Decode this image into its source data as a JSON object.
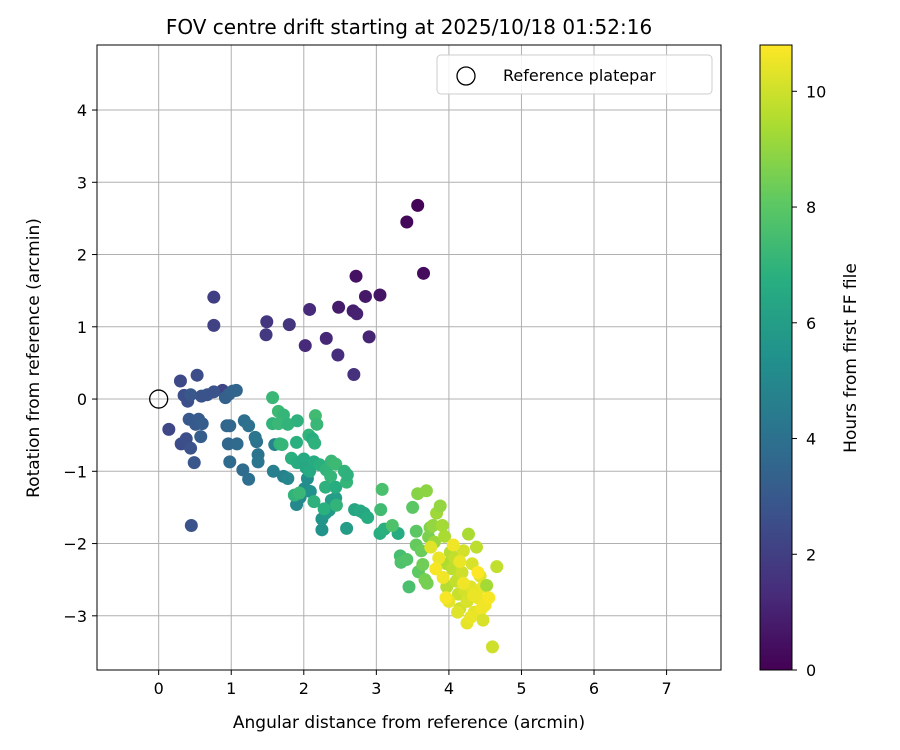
{
  "chart_data": {
    "type": "scatter",
    "title": "FOV centre drift starting at 2025/10/18 01:52:16",
    "xlabel": "Angular distance from reference (arcmin)",
    "ylabel": "Rotation from reference (arcmin)",
    "xlim": [
      -0.85,
      7.75
    ],
    "ylim": [
      -3.75,
      4.9
    ],
    "xticks": [
      0,
      1,
      2,
      3,
      4,
      5,
      6,
      7
    ],
    "yticks": [
      -3,
      -2,
      -1,
      0,
      1,
      2,
      3,
      4
    ],
    "grid": true,
    "legend": {
      "position": "top-right",
      "entries": [
        "Reference platepar"
      ]
    },
    "reference_point": {
      "x": 0,
      "y": 0,
      "label": "Reference platepar"
    },
    "colorbar": {
      "label": "Hours from first FF file",
      "range": [
        0,
        10.8
      ],
      "ticks": [
        0,
        2,
        4,
        6,
        8,
        10
      ],
      "colormap": "viridis"
    },
    "points": [
      {
        "x": 3.57,
        "y": 2.68,
        "c": 0.1
      },
      {
        "x": 3.42,
        "y": 2.45,
        "c": 0.2
      },
      {
        "x": 3.65,
        "y": 1.74,
        "c": 0.3
      },
      {
        "x": 2.72,
        "y": 1.7,
        "c": 0.5
      },
      {
        "x": 3.05,
        "y": 1.44,
        "c": 0.6
      },
      {
        "x": 2.85,
        "y": 1.42,
        "c": 0.7
      },
      {
        "x": 2.48,
        "y": 1.27,
        "c": 0.8
      },
      {
        "x": 2.68,
        "y": 1.22,
        "c": 0.9
      },
      {
        "x": 2.73,
        "y": 1.18,
        "c": 1.0
      },
      {
        "x": 2.9,
        "y": 0.86,
        "c": 1.1
      },
      {
        "x": 2.31,
        "y": 0.84,
        "c": 1.2
      },
      {
        "x": 2.02,
        "y": 0.74,
        "c": 1.3
      },
      {
        "x": 2.47,
        "y": 0.61,
        "c": 1.4
      },
      {
        "x": 2.69,
        "y": 0.34,
        "c": 1.5
      },
      {
        "x": 2.08,
        "y": 1.24,
        "c": 1.3
      },
      {
        "x": 1.8,
        "y": 1.03,
        "c": 1.6
      },
      {
        "x": 1.49,
        "y": 1.07,
        "c": 1.7
      },
      {
        "x": 1.48,
        "y": 0.89,
        "c": 1.8
      },
      {
        "x": 0.76,
        "y": 1.41,
        "c": 2.0
      },
      {
        "x": 0.76,
        "y": 1.02,
        "c": 2.1
      },
      {
        "x": 0.88,
        "y": 0.12,
        "c": 2.2
      },
      {
        "x": 0.3,
        "y": 0.25,
        "c": 2.4
      },
      {
        "x": 0.53,
        "y": 0.33,
        "c": 2.5
      },
      {
        "x": 0.35,
        "y": 0.05,
        "c": 2.6
      },
      {
        "x": 0.4,
        "y": -0.03,
        "c": 2.6
      },
      {
        "x": 0.59,
        "y": 0.04,
        "c": 2.7
      },
      {
        "x": 0.76,
        "y": 0.1,
        "c": 2.8
      },
      {
        "x": 0.67,
        "y": 0.06,
        "c": 2.8
      },
      {
        "x": 0.44,
        "y": 0.06,
        "c": 2.9
      },
      {
        "x": 0.14,
        "y": -0.42,
        "c": 2.3
      },
      {
        "x": 0.31,
        "y": -0.62,
        "c": 2.5
      },
      {
        "x": 0.38,
        "y": -0.55,
        "c": 2.6
      },
      {
        "x": 0.44,
        "y": -0.68,
        "c": 2.7
      },
      {
        "x": 0.45,
        "y": -1.75,
        "c": 2.8
      },
      {
        "x": 0.49,
        "y": -0.88,
        "c": 2.9
      },
      {
        "x": 0.42,
        "y": -0.28,
        "c": 3.0
      },
      {
        "x": 0.51,
        "y": -0.35,
        "c": 3.0
      },
      {
        "x": 0.55,
        "y": -0.28,
        "c": 3.1
      },
      {
        "x": 0.58,
        "y": -0.52,
        "c": 3.2
      },
      {
        "x": 0.6,
        "y": -0.34,
        "c": 3.2
      },
      {
        "x": 0.92,
        "y": 0.02,
        "c": 3.3
      },
      {
        "x": 0.97,
        "y": 0.07,
        "c": 3.3
      },
      {
        "x": 1.02,
        "y": 0.11,
        "c": 3.4
      },
      {
        "x": 1.07,
        "y": 0.12,
        "c": 3.5
      },
      {
        "x": 0.94,
        "y": -0.37,
        "c": 3.5
      },
      {
        "x": 0.98,
        "y": -0.37,
        "c": 3.6
      },
      {
        "x": 0.96,
        "y": -0.62,
        "c": 3.6
      },
      {
        "x": 0.98,
        "y": -0.87,
        "c": 3.7
      },
      {
        "x": 1.08,
        "y": -0.62,
        "c": 3.7
      },
      {
        "x": 1.16,
        "y": -0.98,
        "c": 3.8
      },
      {
        "x": 1.24,
        "y": -1.11,
        "c": 3.9
      },
      {
        "x": 1.18,
        "y": -0.3,
        "c": 3.9
      },
      {
        "x": 1.24,
        "y": -0.37,
        "c": 4.0
      },
      {
        "x": 1.35,
        "y": -0.59,
        "c": 4.0
      },
      {
        "x": 1.37,
        "y": -0.77,
        "c": 4.1
      },
      {
        "x": 1.37,
        "y": -0.87,
        "c": 4.2
      },
      {
        "x": 1.33,
        "y": -0.53,
        "c": 4.2
      },
      {
        "x": 1.58,
        "y": -1.0,
        "c": 4.6
      },
      {
        "x": 1.6,
        "y": -0.63,
        "c": 4.8
      },
      {
        "x": 1.72,
        "y": -1.07,
        "c": 4.7
      },
      {
        "x": 1.78,
        "y": -1.1,
        "c": 4.9
      },
      {
        "x": 1.9,
        "y": -1.46,
        "c": 5.0
      },
      {
        "x": 1.95,
        "y": -1.36,
        "c": 5.1
      },
      {
        "x": 2.01,
        "y": -1.24,
        "c": 5.2
      },
      {
        "x": 2.05,
        "y": -1.1,
        "c": 5.3
      },
      {
        "x": 2.09,
        "y": -1.28,
        "c": 5.4
      },
      {
        "x": 2.25,
        "y": -1.81,
        "c": 5.5
      },
      {
        "x": 2.25,
        "y": -1.66,
        "c": 5.6
      },
      {
        "x": 2.3,
        "y": -1.58,
        "c": 5.7
      },
      {
        "x": 2.35,
        "y": -1.54,
        "c": 5.8
      },
      {
        "x": 2.38,
        "y": -1.4,
        "c": 5.9
      },
      {
        "x": 2.44,
        "y": -1.37,
        "c": 6.0
      },
      {
        "x": 2.59,
        "y": -1.79,
        "c": 5.9
      },
      {
        "x": 2.7,
        "y": -1.53,
        "c": 6.3
      },
      {
        "x": 2.78,
        "y": -1.55,
        "c": 6.5
      },
      {
        "x": 2.83,
        "y": -1.58,
        "c": 6.4
      },
      {
        "x": 2.88,
        "y": -1.64,
        "c": 6.6
      },
      {
        "x": 3.05,
        "y": -1.86,
        "c": 6.7
      },
      {
        "x": 3.11,
        "y": -1.8,
        "c": 6.8
      },
      {
        "x": 3.3,
        "y": -1.86,
        "c": 6.6
      },
      {
        "x": 1.57,
        "y": 0.02,
        "c": 7.2
      },
      {
        "x": 1.65,
        "y": -0.17,
        "c": 7.3
      },
      {
        "x": 1.72,
        "y": -0.22,
        "c": 7.1
      },
      {
        "x": 1.57,
        "y": -0.34,
        "c": 7.0
      },
      {
        "x": 1.65,
        "y": -0.34,
        "c": 7.2
      },
      {
        "x": 1.78,
        "y": -0.35,
        "c": 7.0
      },
      {
        "x": 1.91,
        "y": -0.3,
        "c": 6.9
      },
      {
        "x": 1.67,
        "y": -0.62,
        "c": 7.0
      },
      {
        "x": 1.7,
        "y": -0.63,
        "c": 7.1
      },
      {
        "x": 1.9,
        "y": -0.6,
        "c": 6.8
      },
      {
        "x": 2.07,
        "y": -0.5,
        "c": 7.0
      },
      {
        "x": 2.12,
        "y": -0.55,
        "c": 6.7
      },
      {
        "x": 2.15,
        "y": -0.61,
        "c": 6.9
      },
      {
        "x": 2.16,
        "y": -0.23,
        "c": 7.4
      },
      {
        "x": 2.18,
        "y": -0.35,
        "c": 7.2
      },
      {
        "x": 1.83,
        "y": -0.82,
        "c": 6.8
      },
      {
        "x": 1.91,
        "y": -0.88,
        "c": 6.6
      },
      {
        "x": 2.0,
        "y": -0.83,
        "c": 6.5
      },
      {
        "x": 2.03,
        "y": -0.95,
        "c": 6.4
      },
      {
        "x": 2.08,
        "y": -1.0,
        "c": 6.5
      },
      {
        "x": 2.14,
        "y": -0.87,
        "c": 6.6
      },
      {
        "x": 2.22,
        "y": -0.91,
        "c": 6.8
      },
      {
        "x": 2.31,
        "y": -0.98,
        "c": 7.0
      },
      {
        "x": 2.38,
        "y": -0.86,
        "c": 7.2
      },
      {
        "x": 2.44,
        "y": -0.9,
        "c": 7.3
      },
      {
        "x": 2.37,
        "y": -1.07,
        "c": 7.1
      },
      {
        "x": 2.3,
        "y": -1.22,
        "c": 6.9
      },
      {
        "x": 2.44,
        "y": -1.22,
        "c": 6.7
      },
      {
        "x": 2.56,
        "y": -1.0,
        "c": 7.0
      },
      {
        "x": 2.59,
        "y": -1.15,
        "c": 7.1
      },
      {
        "x": 2.6,
        "y": -1.05,
        "c": 6.9
      },
      {
        "x": 1.87,
        "y": -1.33,
        "c": 7.0
      },
      {
        "x": 1.94,
        "y": -1.3,
        "c": 7.2
      },
      {
        "x": 2.14,
        "y": -1.42,
        "c": 6.9
      },
      {
        "x": 2.28,
        "y": -1.52,
        "c": 6.8
      },
      {
        "x": 2.45,
        "y": -1.47,
        "c": 7.0
      },
      {
        "x": 3.06,
        "y": -1.53,
        "c": 7.4
      },
      {
        "x": 3.08,
        "y": -1.25,
        "c": 7.6
      },
      {
        "x": 3.22,
        "y": -1.75,
        "c": 7.7
      },
      {
        "x": 3.33,
        "y": -2.17,
        "c": 7.5
      },
      {
        "x": 3.34,
        "y": -2.26,
        "c": 7.7
      },
      {
        "x": 3.42,
        "y": -2.22,
        "c": 7.8
      },
      {
        "x": 3.45,
        "y": -2.6,
        "c": 7.6
      },
      {
        "x": 3.5,
        "y": -1.5,
        "c": 8.0
      },
      {
        "x": 3.55,
        "y": -1.83,
        "c": 8.0
      },
      {
        "x": 3.55,
        "y": -2.02,
        "c": 8.2
      },
      {
        "x": 3.58,
        "y": -2.39,
        "c": 8.1
      },
      {
        "x": 3.62,
        "y": -2.1,
        "c": 8.3
      },
      {
        "x": 3.64,
        "y": -2.29,
        "c": 8.4
      },
      {
        "x": 3.67,
        "y": -2.5,
        "c": 8.5
      },
      {
        "x": 3.7,
        "y": -2.55,
        "c": 8.5
      },
      {
        "x": 3.72,
        "y": -1.91,
        "c": 8.6
      },
      {
        "x": 3.74,
        "y": -1.78,
        "c": 8.7
      },
      {
        "x": 3.57,
        "y": -1.31,
        "c": 8.8
      },
      {
        "x": 3.69,
        "y": -1.27,
        "c": 8.9
      },
      {
        "x": 3.78,
        "y": -1.75,
        "c": 9.0
      },
      {
        "x": 3.8,
        "y": -1.98,
        "c": 9.1
      },
      {
        "x": 3.83,
        "y": -1.58,
        "c": 9.2
      },
      {
        "x": 3.88,
        "y": -1.48,
        "c": 9.0
      },
      {
        "x": 3.91,
        "y": -1.75,
        "c": 9.3
      },
      {
        "x": 3.94,
        "y": -1.9,
        "c": 9.4
      },
      {
        "x": 3.97,
        "y": -2.28,
        "c": 9.5
      },
      {
        "x": 3.97,
        "y": -2.6,
        "c": 9.6
      },
      {
        "x": 4.02,
        "y": -2.12,
        "c": 9.6
      },
      {
        "x": 4.05,
        "y": -2.35,
        "c": 9.7
      },
      {
        "x": 4.08,
        "y": -2.2,
        "c": 9.8
      },
      {
        "x": 4.1,
        "y": -2.52,
        "c": 9.8
      },
      {
        "x": 4.13,
        "y": -2.7,
        "c": 9.9
      },
      {
        "x": 4.15,
        "y": -2.9,
        "c": 10.0
      },
      {
        "x": 4.18,
        "y": -2.4,
        "c": 10.0
      },
      {
        "x": 4.2,
        "y": -2.1,
        "c": 10.1
      },
      {
        "x": 4.22,
        "y": -2.65,
        "c": 10.1
      },
      {
        "x": 4.25,
        "y": -2.8,
        "c": 10.2
      },
      {
        "x": 4.27,
        "y": -1.87,
        "c": 9.4
      },
      {
        "x": 4.3,
        "y": -2.6,
        "c": 10.3
      },
      {
        "x": 4.32,
        "y": -2.28,
        "c": 10.2
      },
      {
        "x": 4.35,
        "y": -2.95,
        "c": 10.4
      },
      {
        "x": 4.36,
        "y": -2.67,
        "c": 10.4
      },
      {
        "x": 4.38,
        "y": -2.05,
        "c": 9.7
      },
      {
        "x": 4.4,
        "y": -2.75,
        "c": 10.5
      },
      {
        "x": 4.43,
        "y": -2.45,
        "c": 10.3
      },
      {
        "x": 4.45,
        "y": -2.9,
        "c": 10.6
      },
      {
        "x": 4.47,
        "y": -2.6,
        "c": 10.5
      },
      {
        "x": 4.5,
        "y": -2.85,
        "c": 10.6
      },
      {
        "x": 4.52,
        "y": -2.58,
        "c": 9.3
      },
      {
        "x": 4.55,
        "y": -2.75,
        "c": 10.7
      },
      {
        "x": 4.6,
        "y": -3.43,
        "c": 10.0
      },
      {
        "x": 4.66,
        "y": -2.32,
        "c": 9.8
      },
      {
        "x": 4.47,
        "y": -3.06,
        "c": 10.2
      },
      {
        "x": 4.25,
        "y": -3.1,
        "c": 10.4
      },
      {
        "x": 4.3,
        "y": -3.02,
        "c": 10.5
      },
      {
        "x": 4.12,
        "y": -2.95,
        "c": 10.3
      },
      {
        "x": 4.0,
        "y": -2.8,
        "c": 10.4
      },
      {
        "x": 3.92,
        "y": -2.47,
        "c": 10.6
      },
      {
        "x": 3.86,
        "y": -2.2,
        "c": 10.5
      },
      {
        "x": 3.75,
        "y": -2.05,
        "c": 10.3
      },
      {
        "x": 3.82,
        "y": -2.35,
        "c": 10.7
      },
      {
        "x": 4.06,
        "y": -2.02,
        "c": 10.6
      },
      {
        "x": 4.15,
        "y": -2.25,
        "c": 10.5
      },
      {
        "x": 4.4,
        "y": -2.4,
        "c": 10.8
      },
      {
        "x": 3.96,
        "y": -2.75,
        "c": 10.7
      },
      {
        "x": 4.2,
        "y": -2.55,
        "c": 10.6
      },
      {
        "x": 4.34,
        "y": -2.72,
        "c": 10.5
      }
    ]
  }
}
